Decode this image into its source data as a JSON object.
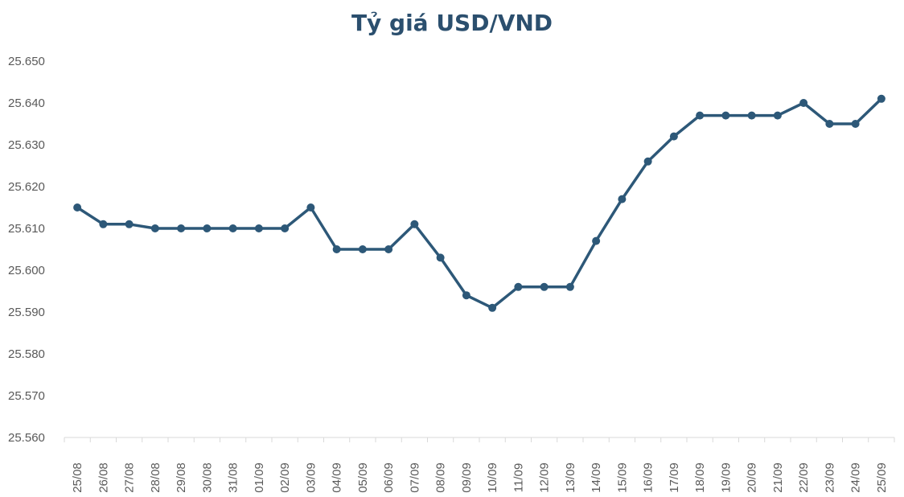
{
  "chart_data": {
    "type": "line",
    "title": "Tỷ giá USD/VND",
    "xlabel": "",
    "ylabel": "",
    "categories": [
      "25/08",
      "26/08",
      "27/08",
      "28/08",
      "29/08",
      "30/08",
      "31/08",
      "01/09",
      "02/09",
      "03/09",
      "04/09",
      "05/09",
      "06/09",
      "07/09",
      "08/09",
      "09/09",
      "10/09",
      "11/09",
      "12/09",
      "13/09",
      "14/09",
      "15/09",
      "16/09",
      "17/09",
      "18/09",
      "19/09",
      "20/09",
      "21/09",
      "22/09",
      "23/09",
      "24/09",
      "25/09"
    ],
    "series": [
      {
        "values": [
          25615,
          25611,
          25611,
          25610,
          25610,
          25610,
          25610,
          25610,
          25610,
          25615,
          25605,
          25605,
          25605,
          25611,
          25603,
          25594,
          25591,
          25596,
          25596,
          25596,
          25607,
          25617,
          25626,
          25632,
          25637,
          25637,
          25637,
          25637,
          25640,
          25635,
          25635,
          25641
        ]
      }
    ],
    "y_ticks": [
      "25.560",
      "25.570",
      "25.580",
      "25.590",
      "25.600",
      "25.610",
      "25.620",
      "25.630",
      "25.640",
      "25.650"
    ],
    "ylim": [
      25560,
      25650
    ],
    "grid": false,
    "legend": "none",
    "colors": {
      "line": "#2d5878",
      "axis": "#d9d9d9",
      "title": "#2b4f6e"
    }
  }
}
